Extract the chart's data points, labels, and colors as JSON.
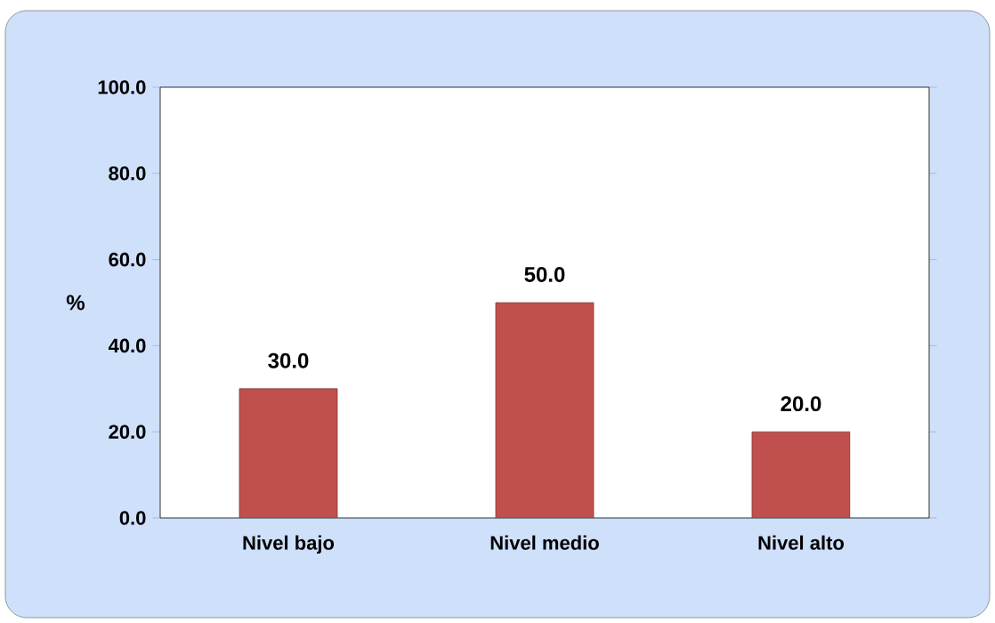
{
  "chart_data": {
    "type": "bar",
    "categories": [
      "Nivel bajo",
      "Nivel medio",
      "Nivel alto"
    ],
    "values": [
      30,
      50,
      20
    ],
    "value_labels": [
      "30.0",
      "50.0",
      "20.0"
    ],
    "color": "#c0504d",
    "ylabel": "%",
    "ylim": [
      0,
      100
    ],
    "yticks": [
      {
        "value": 0,
        "label": "0.0"
      },
      {
        "value": 20,
        "label": "20.0"
      },
      {
        "value": 40,
        "label": "40.0"
      },
      {
        "value": 60,
        "label": "60.0"
      },
      {
        "value": 80,
        "label": "80.0"
      },
      {
        "value": 100,
        "label": "100.0"
      }
    ]
  }
}
